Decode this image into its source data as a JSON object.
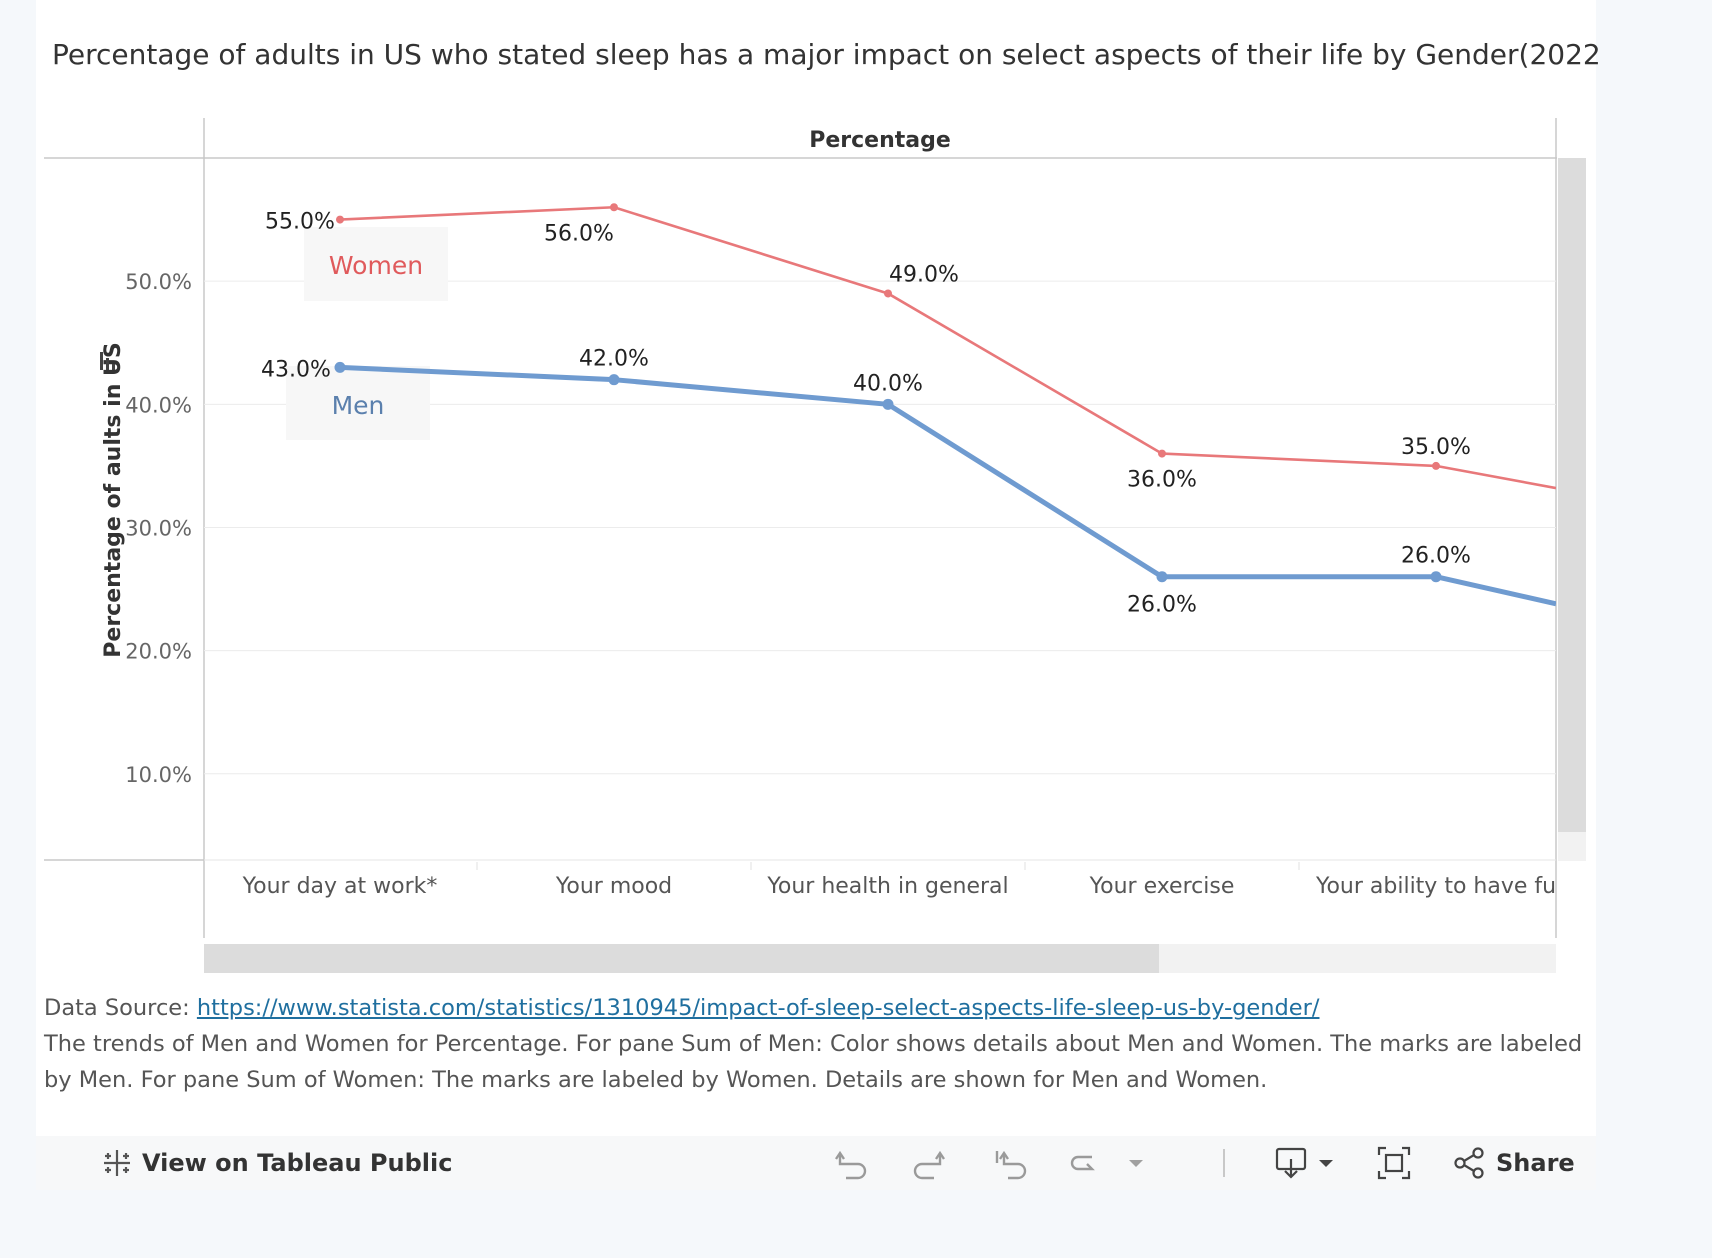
{
  "title": "Percentage of adults in US who stated sleep has a major impact on select aspects of their life by Gender(2022",
  "chart_data": {
    "type": "line",
    "header": "Percentage",
    "ylabel": "Percentage of aults in US",
    "ylim": [
      3,
      60
    ],
    "yticks": [
      "10.0%",
      "20.0%",
      "30.0%",
      "40.0%",
      "50.0%"
    ],
    "categories": [
      "Your day at work*",
      "Your mood",
      "Your health in general",
      "Your exercise",
      "Your ability to have fu"
    ],
    "series": [
      {
        "name": "Women",
        "values": [
          55.0,
          56.0,
          49.0,
          36.0,
          35.0
        ],
        "labels": [
          "55.0%",
          "56.0%",
          "49.0%",
          "36.0%",
          "35.0%"
        ],
        "trailing_value": 33.2,
        "color": "#e8787a",
        "label_color": "#e05a5c"
      },
      {
        "name": "Men",
        "values": [
          43.0,
          42.0,
          40.0,
          26.0,
          26.0
        ],
        "labels": [
          "43.0%",
          "42.0%",
          "40.0%",
          "26.0%",
          "26.0%"
        ],
        "trailing_value": 23.8,
        "color": "#6f9bd0",
        "label_color": "#5b80ad"
      }
    ],
    "grid": true,
    "legend": "inline labels"
  },
  "footer": {
    "source_prefix": "Data Source: ",
    "source_url": "https://www.statista.com/statistics/1310945/impact-of-sleep-select-aspects-life-sleep-us-by-gender/",
    "description": "The trends of Men and Women for Percentage.  For pane Sum of Men:  Color shows details about Men and Women.  The marks are labeled by Men.  For pane Sum of Women:  The marks are labeled by Women.  Details are shown for Men and Women."
  },
  "toolbar": {
    "view_label": "View on Tableau Public",
    "share_label": "Share"
  }
}
